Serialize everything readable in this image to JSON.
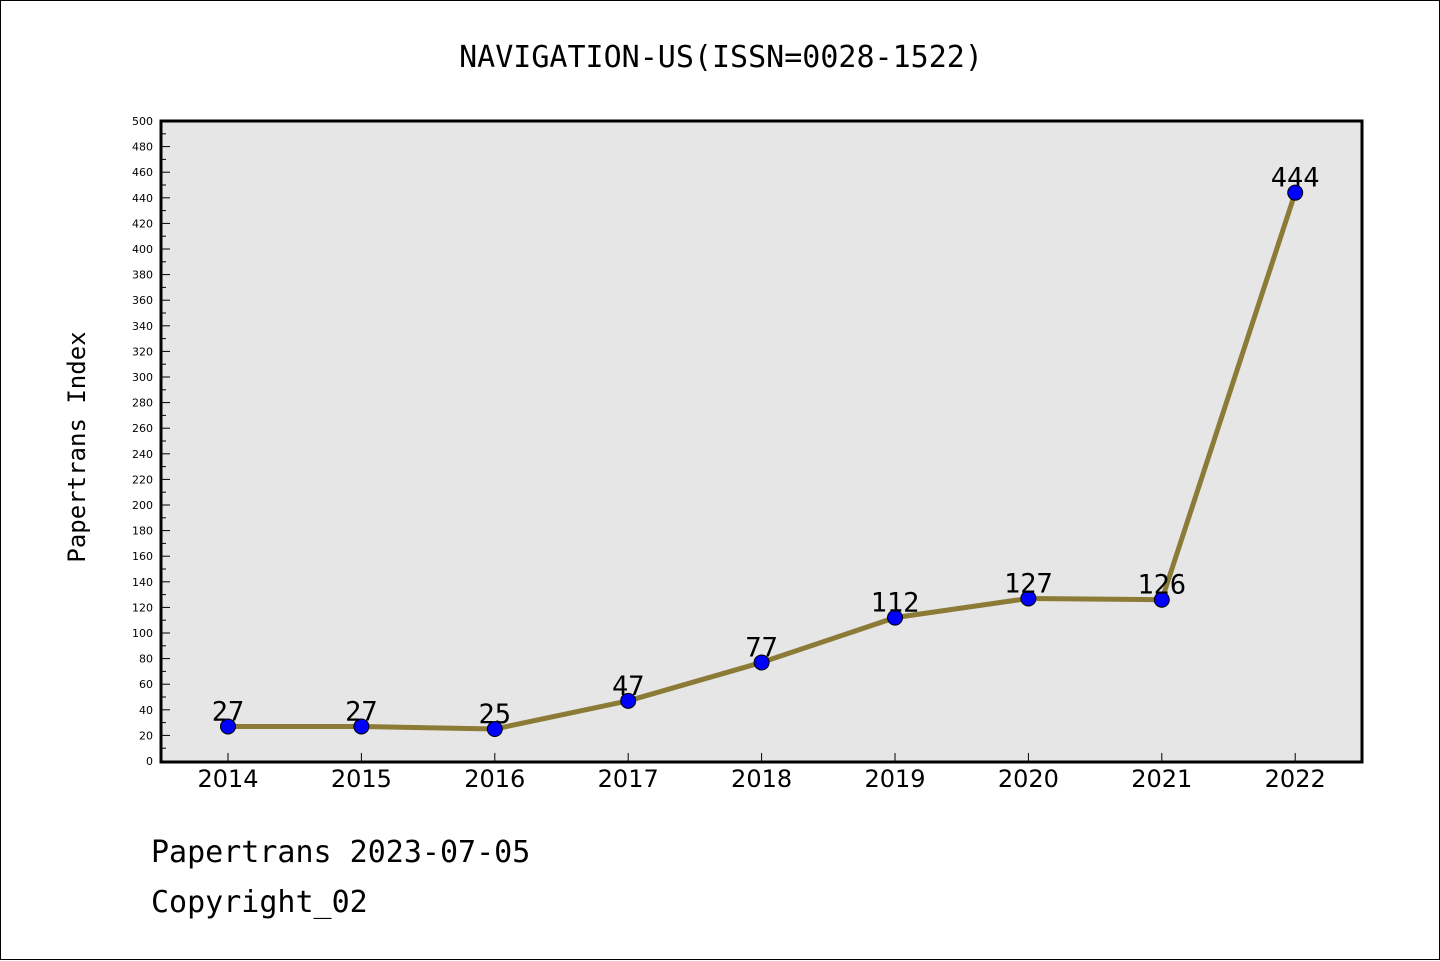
{
  "chart_data": {
    "type": "line",
    "title": "NAVIGATION-US(ISSN=0028-1522)",
    "xlabel": "",
    "ylabel": "Papertrans Index",
    "categories": [
      "2014",
      "2015",
      "2016",
      "2017",
      "2018",
      "2019",
      "2020",
      "2021",
      "2022"
    ],
    "values": [
      27,
      27,
      25,
      47,
      77,
      112,
      127,
      126,
      444
    ],
    "data_labels": [
      "27",
      "27",
      "25",
      "47",
      "77",
      "112",
      "127",
      "126",
      "444"
    ],
    "ylim": [
      0,
      500
    ],
    "y_ticks": [
      "0",
      "20",
      "40",
      "60",
      "80",
      "100",
      "120",
      "140",
      "160",
      "180",
      "200",
      "220",
      "240",
      "260",
      "280",
      "300",
      "320",
      "340",
      "360",
      "380",
      "400",
      "420",
      "440",
      "460",
      "480",
      "500"
    ],
    "grid": false,
    "legend": "none",
    "colors": {
      "line": "#8b7b37",
      "marker": "#0000ff",
      "plot_background": "#e6e6e6"
    }
  },
  "footer": {
    "date_text": "Papertrans 2023-07-05",
    "copyright_text": "Copyright_02"
  }
}
